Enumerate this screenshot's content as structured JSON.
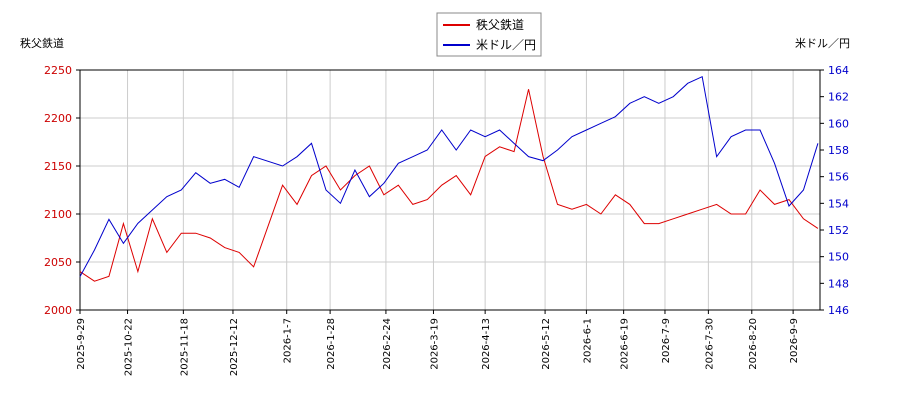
{
  "chart_data": {
    "type": "line",
    "y_label": "秩父鉄道",
    "y2_label": "米ドル／円",
    "x": [
      "2025-9-29",
      "2025-10-6",
      "2025-10-13",
      "2025-10-20",
      "2025-10-27",
      "2025-11-3",
      "2025-11-10",
      "2025-11-17",
      "2025-11-24",
      "2025-12-1",
      "2025-12-8",
      "2025-12-15",
      "2025-12-22",
      "2026-1-5",
      "2026-1-12",
      "2026-1-19",
      "2026-1-26",
      "2026-2-2",
      "2026-2-9",
      "2026-2-16",
      "2026-2-23",
      "2026-3-2",
      "2026-3-9",
      "2026-3-16",
      "2026-3-23",
      "2026-3-30",
      "2026-4-6",
      "2026-4-13",
      "2026-4-20",
      "2026-4-27",
      "2026-5-4",
      "2026-5-11",
      "2026-5-18",
      "2026-5-25",
      "2026-6-1",
      "2026-6-8",
      "2026-6-15",
      "2026-6-22",
      "2026-6-29",
      "2026-7-6",
      "2026-7-13",
      "2026-7-20",
      "2026-7-27",
      "2026-8-3",
      "2026-8-10",
      "2026-8-17",
      "2026-8-24",
      "2026-8-31",
      "2026-9-7",
      "2026-9-14",
      "2026-9-21"
    ],
    "series": [
      {
        "name": "秩父鉄道",
        "color": "#dd0000",
        "values": [
          2040,
          2030,
          2035,
          2090,
          2040,
          2095,
          2060,
          2080,
          2080,
          2075,
          2065,
          2060,
          2045,
          2130,
          2110,
          2140,
          2150,
          2125,
          2140,
          2150,
          2120,
          2130,
          2110,
          2115,
          2130,
          2140,
          2120,
          2160,
          2170,
          2165,
          2230,
          2160,
          2110,
          2105,
          2110,
          2100,
          2120,
          2110,
          2090,
          2090,
          2095,
          2100,
          2105,
          2110,
          2100,
          2100,
          2125,
          2110,
          2115,
          2095,
          2085
        ]
      },
      {
        "name": "米ドル／円",
        "color": "#0000cc",
        "axis": "y2",
        "values": [
          148.5,
          150.5,
          152.8,
          151.0,
          152.5,
          153.5,
          154.5,
          155.0,
          156.3,
          155.5,
          155.8,
          155.2,
          157.5,
          156.8,
          157.5,
          158.5,
          155.0,
          154.0,
          156.5,
          154.5,
          155.5,
          157.0,
          157.5,
          158.0,
          159.5,
          158.0,
          159.5,
          159.0,
          159.5,
          158.5,
          157.5,
          157.2,
          158.0,
          159.0,
          159.5,
          160.0,
          160.5,
          161.5,
          162.0,
          161.5,
          162.0,
          163.0,
          163.5,
          157.5,
          159.0,
          159.5,
          159.5,
          157.0,
          153.8,
          155.0,
          158.5
        ]
      }
    ],
    "xlim": [
      "2025-9-29",
      "2026-9-22"
    ],
    "xticks": [
      "2025-9-29",
      "2025-10-22",
      "2025-11-18",
      "2025-12-12",
      "2026-1-7",
      "2026-1-28",
      "2026-2-24",
      "2026-3-19",
      "2026-4-13",
      "2026-5-12",
      "2026-6-1",
      "2026-6-19",
      "2026-7-9",
      "2026-7-30",
      "2026-8-20",
      "2026-9-9"
    ],
    "ylim": [
      2000,
      2250
    ],
    "yticks": [
      2000,
      2050,
      2100,
      2150,
      2200,
      2250
    ],
    "y2lim": [
      146,
      164
    ],
    "y2ticks": [
      146,
      148,
      150,
      152,
      154,
      156,
      158,
      160,
      162,
      164
    ],
    "grid": true
  }
}
